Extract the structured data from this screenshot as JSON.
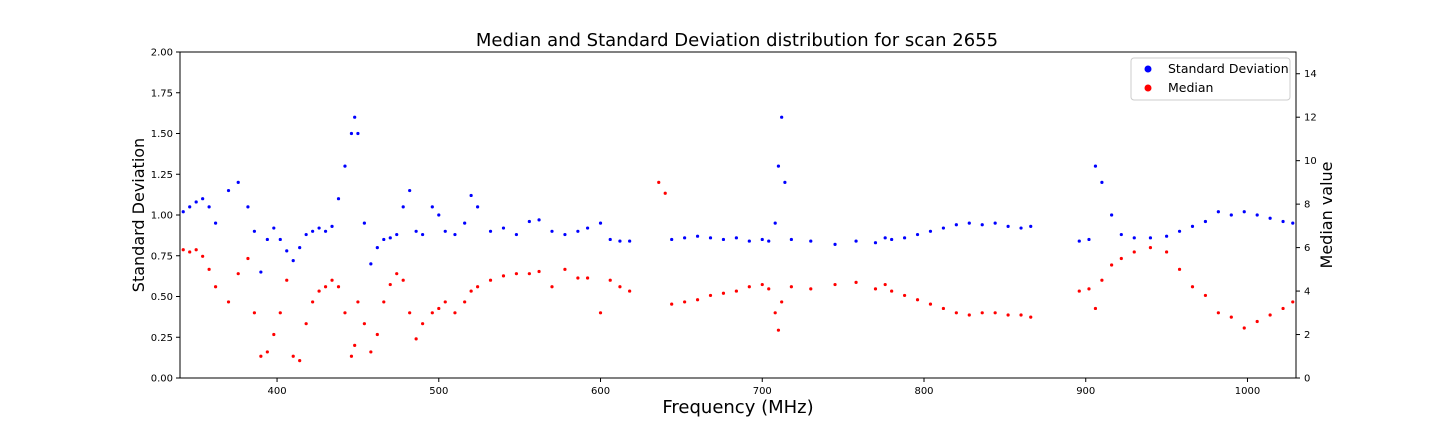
{
  "chart_data": {
    "type": "scatter",
    "title": "Median and Standard Deviation distribution for scan 2655",
    "xlabel": "Frequency (MHz)",
    "ylabel_left": "Standard Deviation",
    "ylabel_right": "Median value",
    "xlim": [
      340,
      1030
    ],
    "ylim_left": [
      0,
      2.0
    ],
    "ylim_right": [
      0,
      15
    ],
    "x_ticks": [
      400,
      500,
      600,
      700,
      800,
      900,
      1000
    ],
    "y_left_ticks": [
      "0.00",
      "0.25",
      "0.50",
      "0.75",
      "1.00",
      "1.25",
      "1.50",
      "1.75",
      "2.00"
    ],
    "y_right_ticks": [
      0,
      2,
      4,
      6,
      8,
      10,
      12,
      14
    ],
    "legend": {
      "position": "top-right",
      "entries": [
        {
          "label": "Standard Deviation",
          "color": "#0000ff"
        },
        {
          "label": "Median",
          "color": "#ff0000"
        }
      ]
    },
    "grid": false,
    "series": [
      {
        "name": "Standard Deviation",
        "axis": "left",
        "color": "#0000ff",
        "points": [
          [
            342,
            1.02
          ],
          [
            346,
            1.05
          ],
          [
            350,
            1.08
          ],
          [
            354,
            1.1
          ],
          [
            358,
            1.05
          ],
          [
            362,
            0.95
          ],
          [
            370,
            1.15
          ],
          [
            376,
            1.2
          ],
          [
            382,
            1.05
          ],
          [
            386,
            0.9
          ],
          [
            390,
            0.65
          ],
          [
            394,
            0.85
          ],
          [
            398,
            0.92
          ],
          [
            402,
            0.85
          ],
          [
            406,
            0.78
          ],
          [
            410,
            0.72
          ],
          [
            414,
            0.8
          ],
          [
            418,
            0.88
          ],
          [
            422,
            0.9
          ],
          [
            426,
            0.92
          ],
          [
            430,
            0.9
          ],
          [
            434,
            0.93
          ],
          [
            438,
            1.1
          ],
          [
            442,
            1.3
          ],
          [
            446,
            1.5
          ],
          [
            448,
            1.6
          ],
          [
            450,
            1.5
          ],
          [
            454,
            0.95
          ],
          [
            458,
            0.7
          ],
          [
            462,
            0.8
          ],
          [
            466,
            0.85
          ],
          [
            470,
            0.86
          ],
          [
            474,
            0.88
          ],
          [
            478,
            1.05
          ],
          [
            482,
            1.15
          ],
          [
            486,
            0.9
          ],
          [
            490,
            0.88
          ],
          [
            496,
            1.05
          ],
          [
            500,
            1.0
          ],
          [
            504,
            0.9
          ],
          [
            510,
            0.88
          ],
          [
            516,
            0.95
          ],
          [
            520,
            1.12
          ],
          [
            524,
            1.05
          ],
          [
            532,
            0.9
          ],
          [
            540,
            0.92
          ],
          [
            548,
            0.88
          ],
          [
            556,
            0.96
          ],
          [
            562,
            0.97
          ],
          [
            570,
            0.9
          ],
          [
            578,
            0.88
          ],
          [
            586,
            0.9
          ],
          [
            592,
            0.92
          ],
          [
            600,
            0.95
          ],
          [
            606,
            0.85
          ],
          [
            612,
            0.84
          ],
          [
            618,
            0.84
          ],
          [
            644,
            0.85
          ],
          [
            652,
            0.86
          ],
          [
            660,
            0.87
          ],
          [
            668,
            0.86
          ],
          [
            676,
            0.85
          ],
          [
            684,
            0.86
          ],
          [
            692,
            0.84
          ],
          [
            700,
            0.85
          ],
          [
            704,
            0.84
          ],
          [
            708,
            0.95
          ],
          [
            710,
            1.3
          ],
          [
            712,
            1.6
          ],
          [
            714,
            1.2
          ],
          [
            718,
            0.85
          ],
          [
            730,
            0.84
          ],
          [
            745,
            0.82
          ],
          [
            758,
            0.84
          ],
          [
            770,
            0.83
          ],
          [
            776,
            0.86
          ],
          [
            780,
            0.85
          ],
          [
            788,
            0.86
          ],
          [
            796,
            0.88
          ],
          [
            804,
            0.9
          ],
          [
            812,
            0.92
          ],
          [
            820,
            0.94
          ],
          [
            828,
            0.95
          ],
          [
            836,
            0.94
          ],
          [
            844,
            0.95
          ],
          [
            852,
            0.93
          ],
          [
            860,
            0.92
          ],
          [
            866,
            0.93
          ],
          [
            896,
            0.84
          ],
          [
            902,
            0.85
          ],
          [
            906,
            1.3
          ],
          [
            910,
            1.2
          ],
          [
            916,
            1.0
          ],
          [
            922,
            0.88
          ],
          [
            930,
            0.86
          ],
          [
            940,
            0.86
          ],
          [
            950,
            0.87
          ],
          [
            958,
            0.9
          ],
          [
            966,
            0.93
          ],
          [
            974,
            0.96
          ],
          [
            982,
            1.02
          ],
          [
            990,
            1.0
          ],
          [
            998,
            1.02
          ],
          [
            1006,
            1.0
          ],
          [
            1014,
            0.98
          ],
          [
            1022,
            0.96
          ],
          [
            1028,
            0.95
          ]
        ]
      },
      {
        "name": "Median",
        "axis": "right",
        "color": "#ff0000",
        "points": [
          [
            342,
            5.9
          ],
          [
            346,
            5.8
          ],
          [
            350,
            5.9
          ],
          [
            354,
            5.6
          ],
          [
            358,
            5.0
          ],
          [
            362,
            4.2
          ],
          [
            370,
            3.5
          ],
          [
            376,
            4.8
          ],
          [
            382,
            5.5
          ],
          [
            386,
            3.0
          ],
          [
            390,
            1.0
          ],
          [
            394,
            1.2
          ],
          [
            398,
            2.0
          ],
          [
            402,
            3.0
          ],
          [
            406,
            4.5
          ],
          [
            410,
            1.0
          ],
          [
            414,
            0.8
          ],
          [
            418,
            2.5
          ],
          [
            422,
            3.5
          ],
          [
            426,
            4.0
          ],
          [
            430,
            4.2
          ],
          [
            434,
            4.5
          ],
          [
            438,
            4.2
          ],
          [
            442,
            3.0
          ],
          [
            446,
            1.0
          ],
          [
            448,
            1.5
          ],
          [
            450,
            3.5
          ],
          [
            454,
            2.5
          ],
          [
            458,
            1.2
          ],
          [
            462,
            2.0
          ],
          [
            466,
            3.5
          ],
          [
            470,
            4.3
          ],
          [
            474,
            4.8
          ],
          [
            478,
            4.5
          ],
          [
            482,
            3.0
          ],
          [
            486,
            1.8
          ],
          [
            490,
            2.5
          ],
          [
            496,
            3.0
          ],
          [
            500,
            3.2
          ],
          [
            504,
            3.5
          ],
          [
            510,
            3.0
          ],
          [
            516,
            3.5
          ],
          [
            520,
            4.0
          ],
          [
            524,
            4.2
          ],
          [
            532,
            4.5
          ],
          [
            540,
            4.7
          ],
          [
            548,
            4.8
          ],
          [
            556,
            4.8
          ],
          [
            562,
            4.9
          ],
          [
            570,
            4.2
          ],
          [
            578,
            5.0
          ],
          [
            586,
            4.6
          ],
          [
            592,
            4.6
          ],
          [
            600,
            3.0
          ],
          [
            606,
            4.5
          ],
          [
            612,
            4.2
          ],
          [
            618,
            4.0
          ],
          [
            636,
            9.0
          ],
          [
            640,
            8.5
          ],
          [
            644,
            3.4
          ],
          [
            652,
            3.5
          ],
          [
            660,
            3.6
          ],
          [
            668,
            3.8
          ],
          [
            676,
            3.9
          ],
          [
            684,
            4.0
          ],
          [
            692,
            4.2
          ],
          [
            700,
            4.3
          ],
          [
            704,
            4.1
          ],
          [
            708,
            3.0
          ],
          [
            710,
            2.2
          ],
          [
            712,
            3.5
          ],
          [
            718,
            4.2
          ],
          [
            730,
            4.1
          ],
          [
            745,
            4.3
          ],
          [
            758,
            4.4
          ],
          [
            770,
            4.1
          ],
          [
            776,
            4.3
          ],
          [
            780,
            4.0
          ],
          [
            788,
            3.8
          ],
          [
            796,
            3.6
          ],
          [
            804,
            3.4
          ],
          [
            812,
            3.2
          ],
          [
            820,
            3.0
          ],
          [
            828,
            2.9
          ],
          [
            836,
            3.0
          ],
          [
            844,
            3.0
          ],
          [
            852,
            2.9
          ],
          [
            860,
            2.9
          ],
          [
            866,
            2.8
          ],
          [
            896,
            4.0
          ],
          [
            902,
            4.1
          ],
          [
            906,
            3.2
          ],
          [
            910,
            4.5
          ],
          [
            916,
            5.2
          ],
          [
            922,
            5.5
          ],
          [
            930,
            5.8
          ],
          [
            940,
            6.0
          ],
          [
            950,
            5.8
          ],
          [
            958,
            5.0
          ],
          [
            966,
            4.2
          ],
          [
            974,
            3.8
          ],
          [
            982,
            3.0
          ],
          [
            990,
            2.8
          ],
          [
            998,
            2.3
          ],
          [
            1006,
            2.6
          ],
          [
            1014,
            2.9
          ],
          [
            1022,
            3.2
          ],
          [
            1028,
            3.5
          ]
        ]
      }
    ]
  }
}
